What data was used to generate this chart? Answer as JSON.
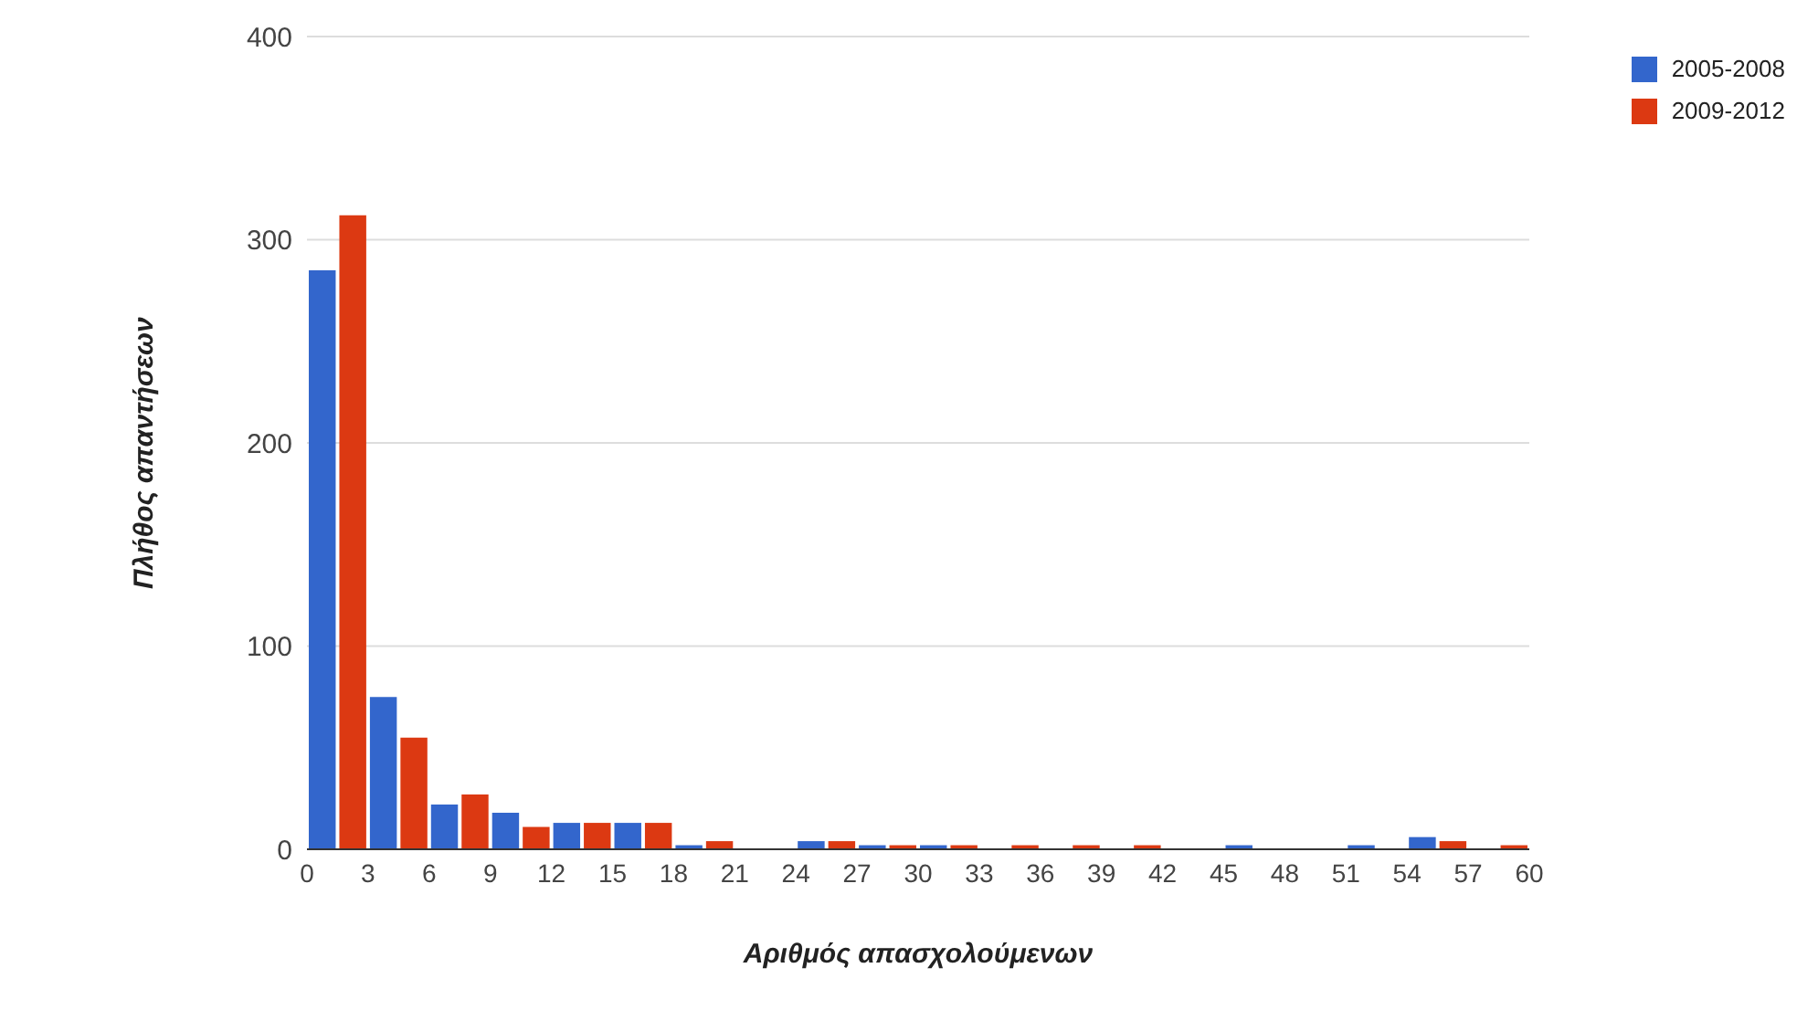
{
  "chart_data": {
    "type": "histogram",
    "xlabel": "Αριθμός απασχολούμενων",
    "ylabel": "Πλήθος απαντήσεων",
    "bins": [
      0,
      3,
      6,
      9,
      12,
      15,
      18,
      21,
      24,
      27,
      30,
      33,
      36,
      39,
      42,
      45,
      48,
      51,
      54,
      57,
      60
    ],
    "series": [
      {
        "name": "2005-2008",
        "color": "#3366cc",
        "values": [
          285,
          75,
          22,
          18,
          13,
          13,
          2,
          0,
          4,
          2,
          2,
          0,
          0,
          0,
          0,
          2,
          0,
          2,
          6,
          0
        ]
      },
      {
        "name": "2009-2012",
        "color": "#dc3912",
        "values": [
          312,
          55,
          27,
          11,
          13,
          13,
          4,
          0,
          4,
          2,
          2,
          2,
          2,
          2,
          0,
          0,
          0,
          0,
          4,
          2
        ]
      }
    ],
    "xlim": [
      0,
      60
    ],
    "xticks": [
      0,
      3,
      6,
      9,
      12,
      15,
      18,
      21,
      24,
      27,
      30,
      33,
      36,
      39,
      42,
      45,
      48,
      51,
      54,
      57,
      60
    ],
    "ylim": [
      0,
      400
    ],
    "yticks": [
      0,
      100,
      200,
      300,
      400
    ],
    "grid": "y",
    "legend": "top right"
  }
}
